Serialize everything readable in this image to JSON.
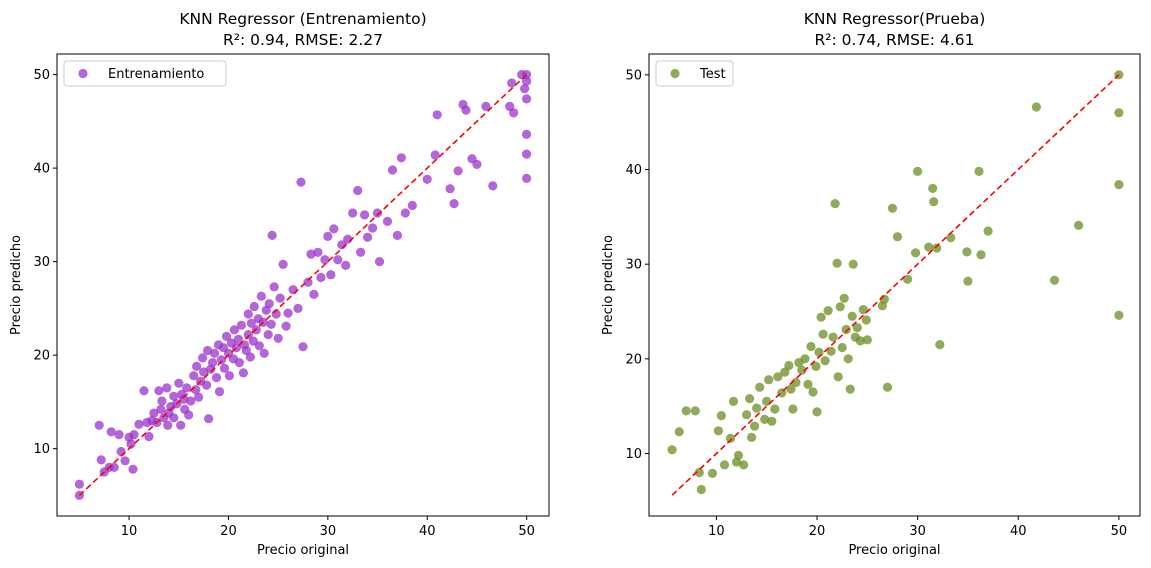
{
  "chart_data": [
    {
      "type": "scatter",
      "title": "KNN Regressor (Entrenamiento)",
      "subtitle": "R²: 0.94, RMSE: 2.27",
      "xlabel": "Precio original",
      "ylabel": "Precio predicho",
      "xlim": [
        2.75,
        52.25
      ],
      "ylim": [
        2.8,
        52.2
      ],
      "xticks": [
        10,
        20,
        30,
        40,
        50
      ],
      "yticks": [
        10,
        20,
        30,
        40,
        50
      ],
      "grid": false,
      "legend_position": "top-left",
      "series": [
        {
          "name": "Entrenamiento",
          "color": "#9932CC",
          "points": [
            [
              5,
              6.2
            ],
            [
              5,
              5
            ],
            [
              7,
              12.5
            ],
            [
              7.2,
              8.8
            ],
            [
              7.5,
              7.5
            ],
            [
              8,
              8
            ],
            [
              8.2,
              11.8
            ],
            [
              8.5,
              8
            ],
            [
              9,
              11.5
            ],
            [
              9.2,
              9.7
            ],
            [
              9.6,
              8.7
            ],
            [
              10,
              11.2
            ],
            [
              10.2,
              10.5
            ],
            [
              10.4,
              7.8
            ],
            [
              10.5,
              11.5
            ],
            [
              11,
              12.6
            ],
            [
              11.5,
              16.2
            ],
            [
              11.8,
              12.8
            ],
            [
              12,
              11.3
            ],
            [
              12.3,
              13
            ],
            [
              12.5,
              13.8
            ],
            [
              12.8,
              12.8
            ],
            [
              13,
              16.2
            ],
            [
              13.2,
              14.2
            ],
            [
              13.3,
              15.1
            ],
            [
              13.5,
              13.3
            ],
            [
              13.8,
              16.5
            ],
            [
              13.9,
              12.5
            ],
            [
              14,
              13.8
            ],
            [
              14.2,
              14.5
            ],
            [
              14.5,
              13.3
            ],
            [
              14.5,
              15.6
            ],
            [
              14.8,
              14.8
            ],
            [
              15,
              17
            ],
            [
              15.2,
              12.5
            ],
            [
              15.3,
              15.8
            ],
            [
              15.5,
              15.3
            ],
            [
              15.6,
              14.2
            ],
            [
              15.8,
              16.5
            ],
            [
              16,
              13.6
            ],
            [
              16.2,
              15.1
            ],
            [
              16.5,
              17.8
            ],
            [
              16.7,
              16.3
            ],
            [
              16.8,
              18.8
            ],
            [
              17,
              15.5
            ],
            [
              17.2,
              17.2
            ],
            [
              17.4,
              19.7
            ],
            [
              17.5,
              18.2
            ],
            [
              17.8,
              16.8
            ],
            [
              17.9,
              20.5
            ],
            [
              18,
              13.2
            ],
            [
              18.2,
              18.5
            ],
            [
              18.4,
              19.2
            ],
            [
              18.6,
              20.2
            ],
            [
              18.8,
              17.6
            ],
            [
              19,
              21.1
            ],
            [
              19.1,
              16.1
            ],
            [
              19.3,
              19.5
            ],
            [
              19.5,
              20.8
            ],
            [
              19.6,
              18.6
            ],
            [
              19.8,
              22
            ],
            [
              20,
              20.2
            ],
            [
              20.1,
              17.8
            ],
            [
              20.3,
              21.3
            ],
            [
              20.5,
              19.6
            ],
            [
              20.6,
              22.7
            ],
            [
              20.8,
              20.8
            ],
            [
              21,
              21.7
            ],
            [
              21.1,
              19.2
            ],
            [
              21.3,
              23.2
            ],
            [
              21.5,
              18.1
            ],
            [
              21.6,
              21.1
            ],
            [
              21.8,
              20.5
            ],
            [
              22,
              22.2
            ],
            [
              22,
              24.4
            ],
            [
              22.2,
              19.8
            ],
            [
              22.3,
              23.4
            ],
            [
              22.5,
              21.5
            ],
            [
              22.6,
              25.2
            ],
            [
              22.8,
              22.7
            ],
            [
              23,
              23.9
            ],
            [
              23.1,
              21
            ],
            [
              23.3,
              26.3
            ],
            [
              23.5,
              23.5
            ],
            [
              23.6,
              20.2
            ],
            [
              23.8,
              24.8
            ],
            [
              24,
              22.2
            ],
            [
              24.1,
              25.5
            ],
            [
              24.3,
              23.3
            ],
            [
              24.4,
              32.8
            ],
            [
              24.6,
              27.3
            ],
            [
              24.8,
              24.4
            ],
            [
              25,
              21.8
            ],
            [
              25.2,
              26.1
            ],
            [
              25.5,
              29.7
            ],
            [
              25.8,
              23.1
            ],
            [
              26,
              24.5
            ],
            [
              26.5,
              27
            ],
            [
              27,
              25
            ],
            [
              27.3,
              38.5
            ],
            [
              27.5,
              20.9
            ],
            [
              28,
              27.8
            ],
            [
              28.3,
              30.8
            ],
            [
              28.6,
              26.5
            ],
            [
              29,
              31
            ],
            [
              29.3,
              28.3
            ],
            [
              29.7,
              30.2
            ],
            [
              30,
              32.7
            ],
            [
              30.3,
              28.6
            ],
            [
              30.6,
              33.5
            ],
            [
              31,
              30.2
            ],
            [
              31.4,
              31.8
            ],
            [
              31.8,
              29.6
            ],
            [
              32,
              32.4
            ],
            [
              32.5,
              35.2
            ],
            [
              33,
              37.6
            ],
            [
              33.3,
              31
            ],
            [
              33.7,
              35
            ],
            [
              34,
              32.6
            ],
            [
              34.5,
              33.6
            ],
            [
              35,
              35.2
            ],
            [
              35.2,
              30
            ],
            [
              36,
              34.3
            ],
            [
              36.5,
              39.8
            ],
            [
              37,
              32.8
            ],
            [
              37.4,
              41.1
            ],
            [
              37.8,
              35.2
            ],
            [
              38.5,
              36
            ],
            [
              40,
              38.8
            ],
            [
              40.8,
              41.4
            ],
            [
              41,
              45.7
            ],
            [
              42.3,
              37.8
            ],
            [
              42.7,
              36.2
            ],
            [
              43.1,
              39.7
            ],
            [
              43.6,
              46.8
            ],
            [
              43.9,
              46.2
            ],
            [
              44.5,
              41
            ],
            [
              45,
              40.4
            ],
            [
              45.9,
              46.6
            ],
            [
              46.6,
              38.1
            ],
            [
              48.3,
              46.6
            ],
            [
              48.5,
              49.1
            ],
            [
              48.7,
              45.9
            ],
            [
              49.5,
              50
            ],
            [
              49.8,
              48.5
            ],
            [
              50,
              50
            ],
            [
              50,
              49.3
            ],
            [
              50,
              47.4
            ],
            [
              50,
              43.6
            ],
            [
              50,
              41.5
            ],
            [
              50,
              38.9
            ]
          ]
        }
      ]
    },
    {
      "type": "scatter",
      "title": "KNN Regressor(Prueba)",
      "subtitle": "R²: 0.74, RMSE: 4.61",
      "xlabel": "Precio original",
      "ylabel": "Precio predicho",
      "xlim": [
        3.3,
        52.1
      ],
      "ylim": [
        3.4,
        52.2
      ],
      "xticks": [
        10,
        20,
        30,
        40,
        50
      ],
      "yticks": [
        10,
        20,
        30,
        40,
        50
      ],
      "grid": false,
      "legend_position": "top-left",
      "series": [
        {
          "name": "Test",
          "color": "#6B8E23",
          "points": [
            [
              5.6,
              10.4
            ],
            [
              6.3,
              12.3
            ],
            [
              7,
              14.5
            ],
            [
              7.9,
              14.5
            ],
            [
              8.3,
              8
            ],
            [
              8.5,
              6.2
            ],
            [
              9.6,
              7.9
            ],
            [
              10.2,
              12.4
            ],
            [
              10.5,
              14
            ],
            [
              10.8,
              8.8
            ],
            [
              11.4,
              11.6
            ],
            [
              11.7,
              15.5
            ],
            [
              12,
              9.1
            ],
            [
              12.2,
              9.8
            ],
            [
              12.7,
              8.8
            ],
            [
              13,
              14.1
            ],
            [
              13.3,
              15.8
            ],
            [
              13.5,
              11.7
            ],
            [
              13.8,
              12.9
            ],
            [
              14,
              14.8
            ],
            [
              14.3,
              17
            ],
            [
              14.8,
              13.6
            ],
            [
              15,
              15.5
            ],
            [
              15.2,
              17.8
            ],
            [
              15.5,
              13.4
            ],
            [
              15.8,
              14.7
            ],
            [
              16.1,
              18.1
            ],
            [
              16.5,
              16.4
            ],
            [
              16.8,
              18.6
            ],
            [
              17.2,
              19.3
            ],
            [
              17.4,
              16.8
            ],
            [
              17.6,
              14.7
            ],
            [
              17.9,
              17.5
            ],
            [
              18.2,
              19.6
            ],
            [
              18.5,
              18.8
            ],
            [
              18.8,
              20
            ],
            [
              19.1,
              17.3
            ],
            [
              19.4,
              21.3
            ],
            [
              19.6,
              16.5
            ],
            [
              19.9,
              19.2
            ],
            [
              20,
              14.4
            ],
            [
              20.2,
              20.7
            ],
            [
              20.4,
              24.4
            ],
            [
              20.6,
              22.6
            ],
            [
              20.8,
              19.8
            ],
            [
              21.1,
              25.1
            ],
            [
              21.4,
              20.8
            ],
            [
              21.6,
              22.3
            ],
            [
              21.8,
              36.4
            ],
            [
              22,
              30.1
            ],
            [
              22.1,
              18.1
            ],
            [
              22.3,
              25.5
            ],
            [
              22.5,
              21.2
            ],
            [
              22.7,
              26.4
            ],
            [
              22.9,
              23.1
            ],
            [
              23.1,
              20
            ],
            [
              23.3,
              16.8
            ],
            [
              23.5,
              24.5
            ],
            [
              23.6,
              30
            ],
            [
              23.8,
              22.3
            ],
            [
              24,
              23.3
            ],
            [
              24.3,
              21.9
            ],
            [
              24.6,
              25.2
            ],
            [
              24.9,
              24.1
            ],
            [
              25,
              22
            ],
            [
              26.5,
              25.6
            ],
            [
              26.7,
              26.3
            ],
            [
              27,
              17
            ],
            [
              27.5,
              35.9
            ],
            [
              28,
              32.9
            ],
            [
              29,
              28.4
            ],
            [
              29.8,
              31.2
            ],
            [
              30,
              39.8
            ],
            [
              31.1,
              31.8
            ],
            [
              31.5,
              38
            ],
            [
              31.6,
              36.6
            ],
            [
              31.9,
              31.7
            ],
            [
              32.2,
              21.5
            ],
            [
              33.3,
              32.8
            ],
            [
              34.9,
              31.3
            ],
            [
              35,
              28.2
            ],
            [
              36.1,
              39.8
            ],
            [
              36.3,
              31
            ],
            [
              37,
              33.5
            ],
            [
              41.8,
              46.6
            ],
            [
              43.6,
              28.3
            ],
            [
              46,
              34.1
            ],
            [
              50,
              50
            ],
            [
              50,
              46
            ],
            [
              50,
              38.4
            ],
            [
              50,
              24.6
            ]
          ]
        }
      ]
    }
  ]
}
